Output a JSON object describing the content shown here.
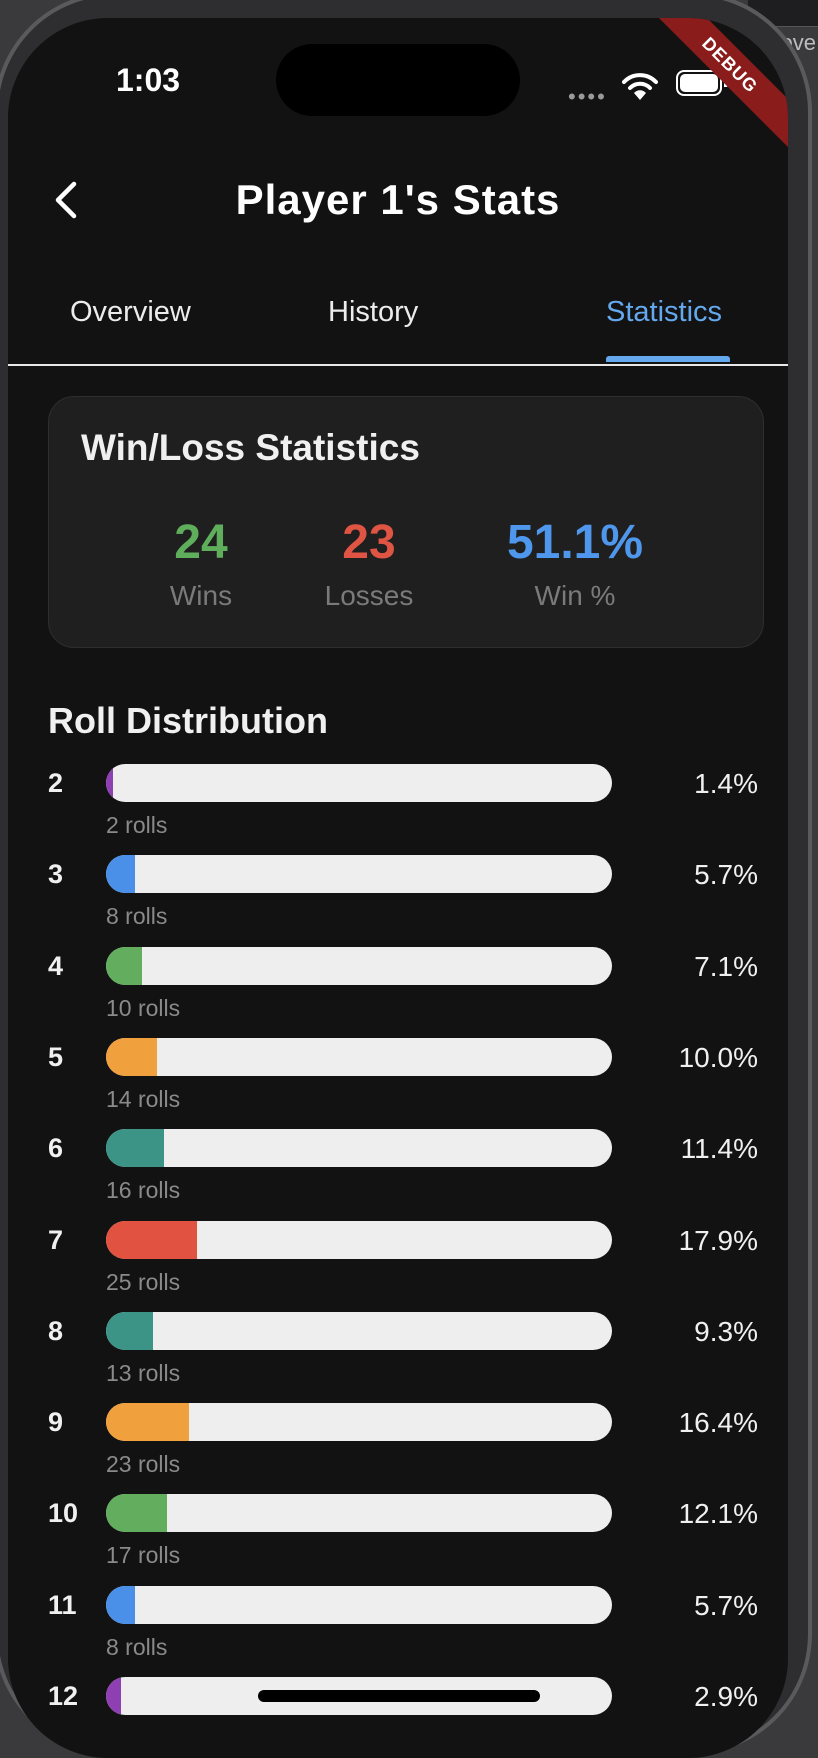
{
  "status_bar": {
    "time": "1:03",
    "signal": "••••",
    "debug_banner": "DEBUG"
  },
  "peek_text": "ove",
  "appbar": {
    "title": "Player 1's Stats"
  },
  "tabs": [
    {
      "label": "Overview",
      "active": false
    },
    {
      "label": "History",
      "active": false
    },
    {
      "label": "Statistics",
      "active": true
    }
  ],
  "win_loss": {
    "title": "Win/Loss Statistics",
    "wins": {
      "value": "24",
      "label": "Wins",
      "color": "#5fae5c"
    },
    "losses": {
      "value": "23",
      "label": "Losses",
      "color": "#e05443"
    },
    "win_pct": {
      "value": "51.1%",
      "label": "Win %",
      "color": "#4f97ec"
    }
  },
  "roll_distribution": {
    "title": "Roll Distribution",
    "rows": [
      {
        "roll": "2",
        "rolls_text": "2 rolls",
        "pct_text": "1.4%",
        "pct": 1.4,
        "color": "#8e3fb2"
      },
      {
        "roll": "3",
        "rolls_text": "8 rolls",
        "pct_text": "5.7%",
        "pct": 5.7,
        "color": "#4a90e8"
      },
      {
        "roll": "4",
        "rolls_text": "10 rolls",
        "pct_text": "7.1%",
        "pct": 7.1,
        "color": "#62ad5e"
      },
      {
        "roll": "5",
        "rolls_text": "14 rolls",
        "pct_text": "10.0%",
        "pct": 10.0,
        "color": "#f0a03d"
      },
      {
        "roll": "6",
        "rolls_text": "16 rolls",
        "pct_text": "11.4%",
        "pct": 11.4,
        "color": "#3c9486"
      },
      {
        "roll": "7",
        "rolls_text": "25 rolls",
        "pct_text": "17.9%",
        "pct": 17.9,
        "color": "#e25241"
      },
      {
        "roll": "8",
        "rolls_text": "13 rolls",
        "pct_text": "9.3%",
        "pct": 9.3,
        "color": "#3c9486"
      },
      {
        "roll": "9",
        "rolls_text": "23 rolls",
        "pct_text": "16.4%",
        "pct": 16.4,
        "color": "#f0a03d"
      },
      {
        "roll": "10",
        "rolls_text": "17 rolls",
        "pct_text": "12.1%",
        "pct": 12.1,
        "color": "#62ad5e"
      },
      {
        "roll": "11",
        "rolls_text": "8 rolls",
        "pct_text": "5.7%",
        "pct": 5.7,
        "color": "#4a90e8"
      },
      {
        "roll": "12",
        "rolls_text": "",
        "pct_text": "2.9%",
        "pct": 2.9,
        "color": "#8e3fb2"
      }
    ]
  }
}
